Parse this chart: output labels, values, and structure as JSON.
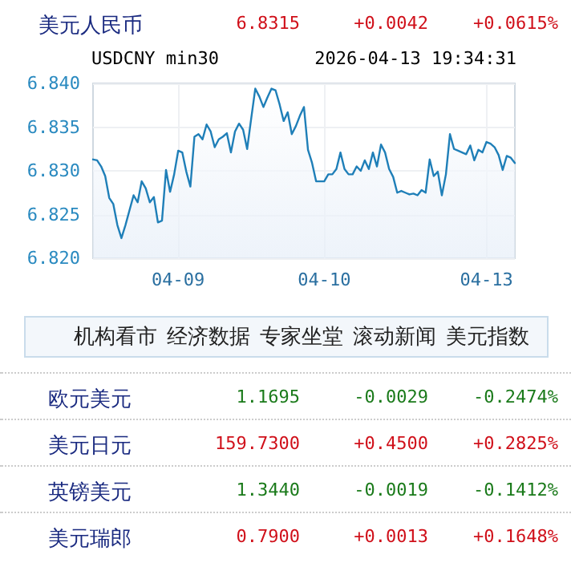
{
  "chart_data": {
    "type": "area",
    "title": "美元人民币",
    "subtitle": "USDCNY min30",
    "annotations": [
      "6.8315",
      "+0.0042",
      "+0.0615%",
      "2026-04-13 19:34:31",
      "机构看市",
      "经济数据",
      "专家坐堂",
      "滚动新闻",
      "美元指数",
      "欧元美元",
      "1.1695",
      "-0.0029",
      "-0.2474%",
      "美元日元",
      "159.7300",
      "+0.4500",
      "+0.2825%",
      "英镑美元",
      "1.3440",
      "-0.0019",
      "-0.1412%",
      "美元瑞郎",
      "0.7900",
      "+0.0013",
      "+0.1648%"
    ],
    "categories": [
      null,
      null,
      null,
      null,
      null,
      null,
      null,
      null,
      null,
      null,
      null,
      null,
      null,
      null,
      null,
      null,
      null,
      null,
      null,
      null,
      null,
      "04-09",
      null,
      null,
      null,
      null,
      null,
      null,
      null,
      null,
      null,
      null,
      null,
      null,
      null,
      null,
      null,
      null,
      null,
      null,
      null,
      null,
      null,
      null,
      null,
      null,
      null,
      null,
      null,
      null,
      null,
      null,
      null,
      null,
      null,
      null,
      null,
      "04-10",
      null,
      null,
      null,
      null,
      null,
      null,
      null,
      null,
      null,
      null,
      null,
      null,
      null,
      null,
      null,
      null,
      null,
      null,
      null,
      null,
      null,
      null,
      null,
      null,
      null,
      null,
      null,
      null,
      null,
      null,
      null,
      null,
      null,
      null,
      null,
      null,
      null,
      null,
      null,
      "04-13",
      null,
      null,
      null,
      null,
      null,
      null,
      null
    ],
    "series": [
      {
        "color": "#1f7fb8",
        "values": [
          6.8313,
          6.8312,
          6.8305,
          6.8294,
          6.8269,
          6.8262,
          6.8238,
          6.8223,
          6.8238,
          6.8255,
          6.8272,
          6.8264,
          6.8288,
          6.828,
          6.8264,
          6.827,
          6.8241,
          6.8243,
          6.8301,
          6.8276,
          6.8296,
          6.8323,
          6.8321,
          6.8299,
          6.8282,
          6.8339,
          6.8342,
          6.8336,
          6.8353,
          6.8345,
          6.8327,
          6.8336,
          6.8339,
          6.8343,
          6.8321,
          6.8345,
          6.8354,
          6.8347,
          6.8325,
          6.836,
          6.8394,
          6.8385,
          6.8373,
          6.8384,
          6.8394,
          6.8392,
          6.8376,
          6.8357,
          6.8367,
          6.8342,
          6.8351,
          6.8363,
          6.8373,
          6.8324,
          6.8309,
          6.8288,
          6.8288,
          6.8288,
          6.8296,
          6.8296,
          6.8302,
          6.8321,
          6.8302,
          6.8296,
          6.8296,
          6.8305,
          6.83,
          6.8312,
          6.8302,
          6.8321,
          6.8305,
          6.833,
          6.8321,
          6.8302,
          6.8293,
          6.8275,
          6.8277,
          6.8275,
          6.8273,
          6.8274,
          6.8272,
          6.8278,
          6.8275,
          6.8313,
          6.8294,
          6.8299,
          6.8272,
          6.8296,
          6.8342,
          6.8325,
          6.8323,
          6.8321,
          6.8319,
          6.8329,
          6.8312,
          6.8324,
          6.8321,
          6.8333,
          6.8331,
          6.8327,
          6.8318,
          6.8301,
          6.8317,
          6.8315,
          6.8309
        ]
      }
    ],
    "ylim": [
      6.82,
      6.84
    ],
    "yticks": [
      {
        "value": 6.82,
        "label": "6.820"
      },
      {
        "value": 6.825,
        "label": "6.825"
      },
      {
        "value": 6.83,
        "label": "6.830"
      },
      {
        "value": 6.835,
        "label": "6.835"
      },
      {
        "value": 6.84,
        "label": "6.840"
      }
    ],
    "grid": true
  }
}
